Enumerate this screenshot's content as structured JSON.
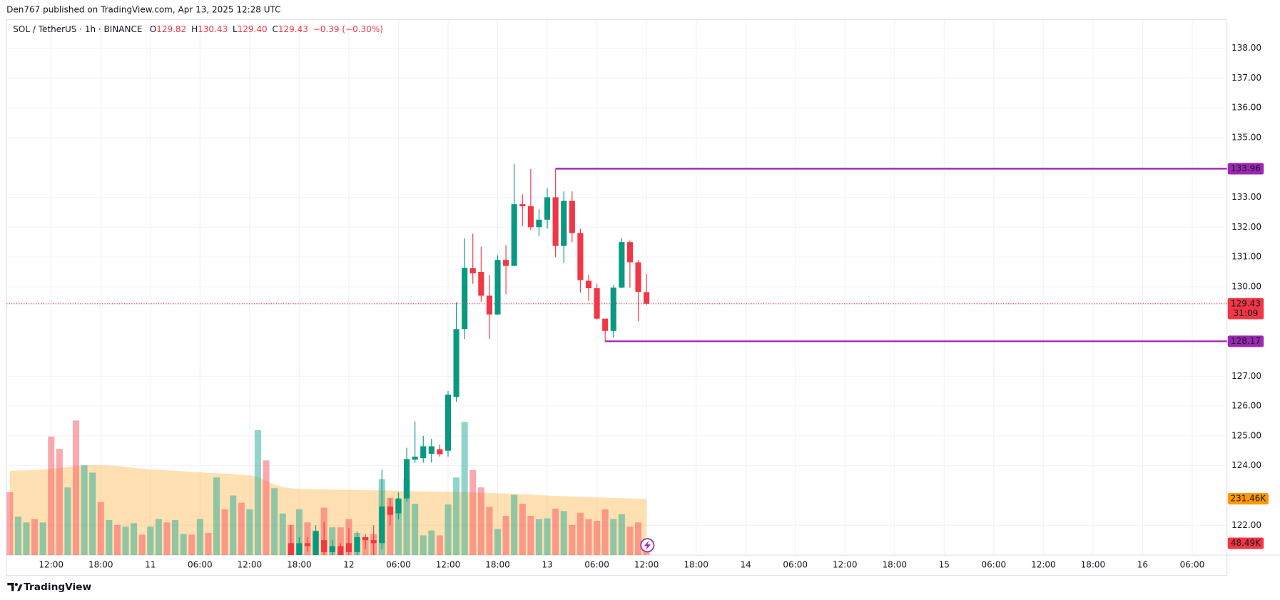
{
  "header": {
    "title": "Den767 published on TradingView.com, Apr 13, 2025 12:28 UTC"
  },
  "footer": {
    "brand": "TradingView"
  },
  "chart_data": {
    "type": "candlestick",
    "legend": {
      "symbol": "SOL / TetherUS · 1h · BINANCE",
      "items": [
        {
          "key": "O",
          "value": "129.82"
        },
        {
          "key": "H",
          "value": "130.43"
        },
        {
          "key": "L",
          "value": "129.40"
        },
        {
          "key": "C",
          "value": "129.43"
        }
      ],
      "change": "−0.39 (−0.30%)"
    },
    "xlim": [
      -0.4,
      147.2
    ],
    "xticks": [
      {
        "value": 5,
        "label": "12:00"
      },
      {
        "value": 11,
        "label": "18:00"
      },
      {
        "value": 17,
        "label": "11"
      },
      {
        "value": 23,
        "label": "06:00"
      },
      {
        "value": 29,
        "label": "12:00"
      },
      {
        "value": 35,
        "label": "18:00"
      },
      {
        "value": 41,
        "label": "12"
      },
      {
        "value": 47,
        "label": "06:00"
      },
      {
        "value": 53,
        "label": "12:00"
      },
      {
        "value": 59,
        "label": "18:00"
      },
      {
        "value": 65,
        "label": "13"
      },
      {
        "value": 71,
        "label": "06:00"
      },
      {
        "value": 77,
        "label": "12:00"
      },
      {
        "value": 83,
        "label": "18:00"
      },
      {
        "value": 89,
        "label": "14"
      },
      {
        "value": 95,
        "label": "06:00"
      },
      {
        "value": 101,
        "label": "12:00"
      },
      {
        "value": 107,
        "label": "18:00"
      },
      {
        "value": 113,
        "label": "15"
      },
      {
        "value": 119,
        "label": "06:00"
      },
      {
        "value": 125,
        "label": "12:00"
      },
      {
        "value": 131,
        "label": "18:00"
      },
      {
        "value": 137,
        "label": "16"
      },
      {
        "value": 143,
        "label": "06:00"
      }
    ],
    "ylim": [
      121,
      138.96
    ],
    "yticks": [
      {
        "value": 122,
        "label": "122.00"
      },
      {
        "value": 124,
        "label": "124.00"
      },
      {
        "value": 125,
        "label": "125.00"
      },
      {
        "value": 126,
        "label": "126.00"
      },
      {
        "value": 127,
        "label": "127.00"
      },
      {
        "value": 130,
        "label": "130.00"
      },
      {
        "value": 131,
        "label": "131.00"
      },
      {
        "value": 132,
        "label": "132.00"
      },
      {
        "value": 133,
        "label": "133.00"
      },
      {
        "value": 135,
        "label": "135.00"
      },
      {
        "value": 136,
        "label": "136.00"
      },
      {
        "value": 137,
        "label": "137.00"
      },
      {
        "value": 138,
        "label": "138.00"
      }
    ],
    "grid": true,
    "up_color": "#089981",
    "down_color": "#f23645",
    "open": [
      null,
      null,
      null,
      null,
      null,
      null,
      null,
      null,
      null,
      null,
      null,
      null,
      null,
      null,
      null,
      null,
      null,
      null,
      null,
      null,
      null,
      null,
      null,
      null,
      null,
      null,
      null,
      null,
      null,
      null,
      null,
      null,
      null,
      null,
      121.4,
      121.0,
      121.4,
      120.8,
      121.5,
      121.1,
      121.3,
      121.4,
      121.1,
      121.6,
      121.5,
      121.4,
      122.63,
      122.4,
      122.9,
      124.2,
      124.25,
      124.4,
      124.55,
      124.5,
      126.3,
      128.58,
      130.62,
      130.5,
      129.7,
      129.07,
      130.9,
      130.7,
      132.77,
      132.7,
      132.0,
      132.25,
      133.0,
      131.37,
      132.88,
      131.8,
      130.2,
      129.95,
      128.93,
      128.52,
      129.97,
      131.5,
      130.82,
      129.82
    ],
    "high": [
      null,
      null,
      null,
      null,
      null,
      null,
      null,
      null,
      null,
      null,
      null,
      null,
      null,
      null,
      null,
      null,
      null,
      null,
      null,
      null,
      null,
      null,
      null,
      null,
      null,
      null,
      null,
      null,
      null,
      null,
      null,
      null,
      null,
      null,
      122.0,
      121.6,
      121.6,
      122.0,
      122.1,
      121.5,
      121.4,
      121.9,
      121.8,
      121.7,
      122.0,
      123.86,
      122.9,
      123.1,
      124.6,
      125.48,
      125.0,
      124.9,
      124.7,
      126.5,
      129.48,
      131.62,
      131.78,
      131.34,
      130.4,
      131.05,
      131.4,
      134.11,
      133.1,
      133.95,
      132.6,
      133.3,
      133.96,
      133.2,
      133.2,
      131.95,
      130.4,
      130.1,
      128.9,
      130.05,
      131.62,
      131.55,
      130.9,
      130.43
    ],
    "low": [
      null,
      null,
      null,
      null,
      null,
      null,
      null,
      null,
      null,
      null,
      null,
      null,
      null,
      null,
      null,
      null,
      null,
      null,
      null,
      null,
      null,
      null,
      null,
      null,
      null,
      null,
      null,
      null,
      null,
      null,
      null,
      null,
      null,
      null,
      120.6,
      120.8,
      121.1,
      120.7,
      120.9,
      120.9,
      120.7,
      120.8,
      120.9,
      121.2,
      121.0,
      121.2,
      122.0,
      122.2,
      122.8,
      124.1,
      124.1,
      124.1,
      124.3,
      124.3,
      126.14,
      128.25,
      130.1,
      129.5,
      128.25,
      129.05,
      129.75,
      130.7,
      132.03,
      131.9,
      131.7,
      131.95,
      130.99,
      130.8,
      131.5,
      129.8,
      129.53,
      128.9,
      128.17,
      128.3,
      129.95,
      129.97,
      128.85,
      129.4
    ],
    "close": [
      null,
      null,
      null,
      null,
      null,
      null,
      null,
      null,
      null,
      null,
      null,
      null,
      null,
      null,
      null,
      null,
      null,
      null,
      null,
      null,
      null,
      null,
      null,
      null,
      null,
      null,
      null,
      null,
      null,
      null,
      null,
      null,
      null,
      null,
      121.0,
      121.4,
      121.3,
      121.8,
      121.1,
      121.3,
      121.0,
      121.1,
      121.6,
      121.5,
      121.4,
      122.63,
      122.35,
      122.9,
      124.22,
      124.3,
      124.65,
      124.65,
      124.38,
      126.38,
      128.58,
      130.63,
      130.45,
      129.7,
      129.07,
      130.9,
      130.7,
      132.77,
      132.7,
      132.0,
      132.25,
      133.0,
      131.37,
      132.88,
      131.8,
      130.22,
      129.95,
      128.93,
      128.52,
      129.97,
      131.5,
      130.82,
      129.83,
      129.43
    ],
    "volume": {
      "ylim": [
        0,
        2200000
      ],
      "values": [
        258000,
        158000,
        134000,
        148000,
        134000,
        487000,
        436000,
        278000,
        553000,
        369000,
        339000,
        218000,
        144000,
        124000,
        117000,
        131000,
        84000,
        117000,
        148000,
        134000,
        144000,
        87000,
        84000,
        148000,
        91000,
        319000,
        188000,
        245000,
        215000,
        188000,
        513000,
        389000,
        275000,
        171000,
        124000,
        188000,
        134000,
        101000,
        195000,
        114000,
        114000,
        148000,
        91000,
        74000,
        87000,
        312000,
        235000,
        228000,
        312000,
        211000,
        81000,
        101000,
        81000,
        208000,
        319000,
        547000,
        349000,
        278000,
        198000,
        107000,
        161000,
        248000,
        211000,
        161000,
        148000,
        151000,
        191000,
        181000,
        124000,
        174000,
        148000,
        141000,
        188000,
        148000,
        168000,
        117000,
        134000,
        48490
      ],
      "colors": [
        "#f7525f",
        "#22ab94",
        "#22ab94",
        "#f7525f",
        "#22ab94",
        "#f7525f",
        "#f7525f",
        "#22ab94",
        "#f7525f",
        "#22ab94",
        "#22ab94",
        "#f7525f",
        "#22ab94",
        "#f7525f",
        "#22ab94",
        "#22ab94",
        "#f7525f",
        "#22ab94",
        "#22ab94",
        "#f7525f",
        "#22ab94",
        "#22ab94",
        "#f7525f",
        "#22ab94",
        "#f7525f",
        "#22ab94",
        "#f7525f",
        "#22ab94",
        "#f7525f",
        "#22ab94",
        "#22ab94",
        "#f7525f",
        "#22ab94",
        "#22ab94",
        "#f7525f",
        "#22ab94",
        "#f7525f",
        "#22ab94",
        "#f7525f",
        "#22ab94",
        "#f7525f",
        "#f7525f",
        "#22ab94",
        "#f7525f",
        "#f7525f",
        "#22ab94",
        "#f7525f",
        "#22ab94",
        "#22ab94",
        "#22ab94",
        "#22ab94",
        "#22ab94",
        "#f7525f",
        "#22ab94",
        "#22ab94",
        "#22ab94",
        "#f7525f",
        "#f7525f",
        "#f7525f",
        "#22ab94",
        "#f7525f",
        "#22ab94",
        "#f7525f",
        "#f7525f",
        "#22ab94",
        "#22ab94",
        "#f7525f",
        "#22ab94",
        "#f7525f",
        "#f7525f",
        "#f7525f",
        "#f7525f",
        "#f7525f",
        "#22ab94",
        "#22ab94",
        "#f7525f",
        "#f7525f",
        "#f7525f"
      ],
      "value_labels": [
        null,
        null,
        null,
        null,
        null,
        null,
        null,
        null,
        null,
        null,
        null,
        null,
        null,
        null,
        null,
        null,
        null,
        null,
        null,
        null,
        null,
        null,
        null,
        null,
        null,
        null,
        null,
        null,
        null,
        null,
        null,
        null,
        null,
        null,
        null,
        null,
        null,
        null,
        null,
        null,
        null,
        null,
        null,
        null,
        null,
        null,
        null,
        null,
        null,
        null,
        null,
        null,
        null,
        null,
        null,
        null,
        null,
        null,
        null,
        null,
        null,
        null,
        null,
        null,
        null,
        null,
        null,
        null,
        null,
        null,
        null,
        null,
        null,
        null,
        null,
        null,
        null,
        "48.49K"
      ]
    },
    "volume_ma": {
      "color": "#ff9800",
      "values": [
        346000,
        347000,
        348000,
        350000,
        352000,
        354000,
        358000,
        362000,
        366000,
        368000,
        369000,
        369000,
        368000,
        366000,
        362000,
        358000,
        355000,
        352000,
        350000,
        348000,
        346000,
        344000,
        342000,
        340000,
        338000,
        336000,
        335000,
        333000,
        330000,
        328000,
        320000,
        305000,
        290000,
        280000,
        275000,
        272000,
        271000,
        270000,
        270000,
        269000,
        268000,
        268000,
        267000,
        267000,
        266000,
        266000,
        265000,
        264000,
        263000,
        262000,
        262000,
        261000,
        261000,
        260000,
        260000,
        259000,
        257000,
        256000,
        255000,
        254000,
        253000,
        251000,
        250000,
        248000,
        246000,
        245000,
        243000,
        242000,
        241000,
        240000,
        238000,
        237000,
        236000,
        235000,
        234000,
        233000,
        232000,
        231460
      ],
      "value_labels": [
        null,
        null,
        null,
        null,
        null,
        null,
        null,
        null,
        null,
        null,
        null,
        null,
        null,
        null,
        null,
        null,
        null,
        null,
        null,
        null,
        null,
        null,
        null,
        null,
        null,
        null,
        null,
        null,
        null,
        null,
        null,
        null,
        null,
        null,
        null,
        null,
        null,
        null,
        null,
        null,
        null,
        null,
        null,
        null,
        null,
        null,
        null,
        null,
        null,
        null,
        null,
        null,
        null,
        null,
        null,
        null,
        null,
        null,
        null,
        null,
        null,
        null,
        null,
        null,
        null,
        null,
        null,
        null,
        null,
        null,
        null,
        null,
        null,
        null,
        null,
        null,
        null,
        "231.46K"
      ]
    },
    "levels": [
      {
        "value": 133.96,
        "label": "133.96",
        "from": 66,
        "color": "#9c27b0"
      },
      {
        "value": 128.17,
        "label": "128.17",
        "from": 72,
        "color": "#9c27b0"
      }
    ],
    "last_price": {
      "value": 129.43,
      "label": "129.43",
      "countdown": "31:09",
      "color": "#f23645"
    }
  }
}
